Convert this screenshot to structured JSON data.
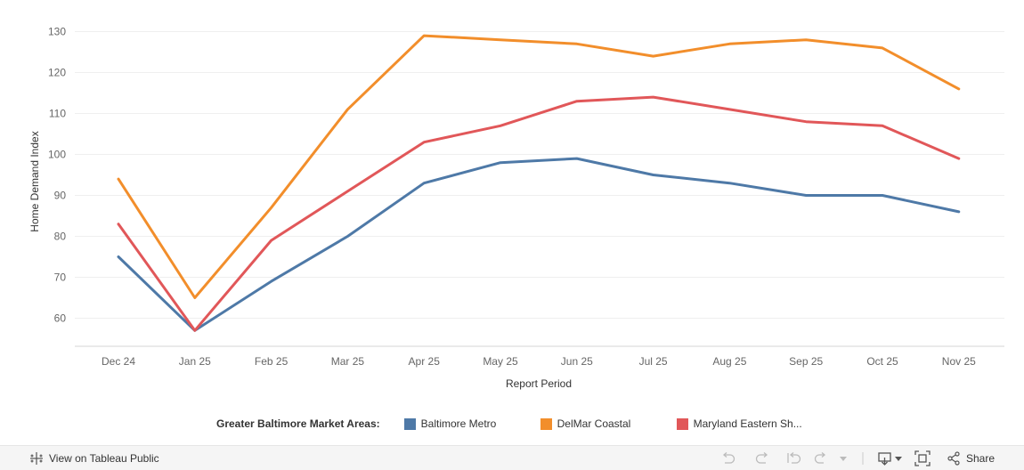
{
  "chart_data": {
    "type": "line",
    "title": "",
    "xlabel": "Report Period",
    "ylabel": "Home Demand Index",
    "categories": [
      "Dec 24",
      "Jan 25",
      "Feb 25",
      "Mar 25",
      "Apr 25",
      "May 25",
      "Jun 25",
      "Jul 25",
      "Aug 25",
      "Sep 25",
      "Oct 25",
      "Nov 25"
    ],
    "ylim": [
      53,
      130
    ],
    "yticks": [
      60,
      70,
      80,
      90,
      100,
      110,
      120,
      130
    ],
    "grid": true,
    "series": [
      {
        "name": "Baltimore Metro",
        "color": "#4e79a7",
        "values": [
          75,
          57,
          69,
          80,
          93,
          98,
          99,
          95,
          93,
          90,
          90,
          86
        ]
      },
      {
        "name": "DelMar Coastal",
        "color": "#f28e2b",
        "values": [
          94,
          65,
          87,
          111,
          129,
          128,
          127,
          124,
          127,
          128,
          126,
          116
        ]
      },
      {
        "name": "Maryland Eastern Sh...",
        "color": "#e15759",
        "values": [
          83,
          57,
          79,
          91,
          103,
          107,
          113,
          114,
          111,
          108,
          107,
          99
        ]
      }
    ],
    "legend": {
      "title": "Greater Baltimore Market Areas:",
      "placement": "bottom"
    }
  },
  "toolbar": {
    "view_label": "View on Tableau Public",
    "share_label": "Share",
    "icons": [
      "tableau-logo-icon",
      "undo-icon",
      "redo-icon",
      "revert-icon",
      "refresh-icon",
      "pause-icon",
      "download-icon",
      "fullscreen-icon",
      "share-icon"
    ]
  }
}
